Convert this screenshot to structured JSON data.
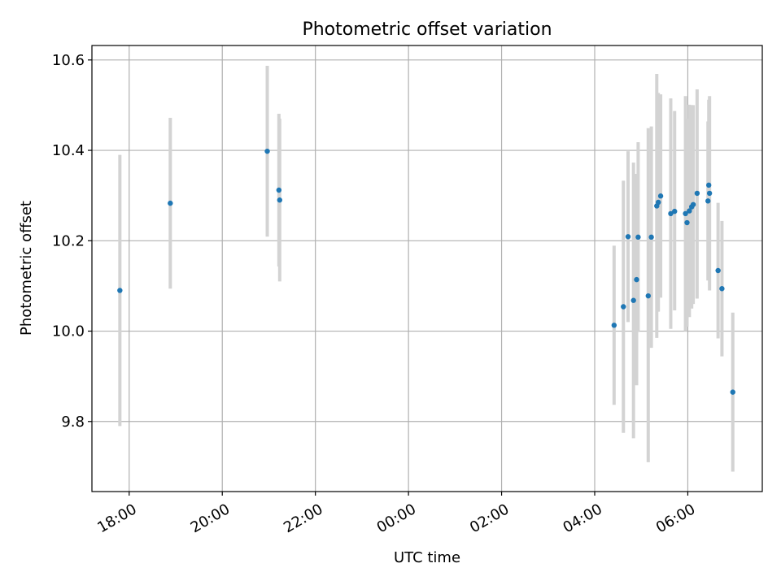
{
  "chart_data": {
    "type": "scatter",
    "title": "Photometric offset variation",
    "xlabel": "UTC time",
    "ylabel": "Photometric offset",
    "x_axis_kind": "time",
    "xlim": [
      "17:12",
      "07:36"
    ],
    "ylim": [
      9.645,
      10.632
    ],
    "xticks": [
      {
        "time": "18:00",
        "label": "18:00"
      },
      {
        "time": "20:00",
        "label": "20:00"
      },
      {
        "time": "22:00",
        "label": "22:00"
      },
      {
        "time": "00:00",
        "label": "00:00"
      },
      {
        "time": "02:00",
        "label": "02:00"
      },
      {
        "time": "04:00",
        "label": "04:00"
      },
      {
        "time": "06:00",
        "label": "06:00"
      }
    ],
    "yticks": [
      {
        "value": 9.8,
        "label": "9.8"
      },
      {
        "value": 10.0,
        "label": "10.0"
      },
      {
        "value": 10.2,
        "label": "10.2"
      },
      {
        "value": 10.4,
        "label": "10.4"
      },
      {
        "value": 10.6,
        "label": "10.6"
      }
    ],
    "grid": true,
    "colors": {
      "point": "#1f77b4",
      "errorbar": "#d3d3d3",
      "grid": "#b0b0b0"
    },
    "points": [
      {
        "time": "17:48",
        "y": 10.09,
        "ylo": 9.79,
        "yhi": 10.39
      },
      {
        "time": "18:53",
        "y": 10.283,
        "ylo": 10.094,
        "yhi": 10.472
      },
      {
        "time": "20:58",
        "y": 10.398,
        "ylo": 10.209,
        "yhi": 10.587
      },
      {
        "time": "21:13",
        "y": 10.312,
        "ylo": 10.143,
        "yhi": 10.481
      },
      {
        "time": "21:14",
        "y": 10.29,
        "ylo": 10.11,
        "yhi": 10.47
      },
      {
        "time": "04:25",
        "y": 10.013,
        "ylo": 9.837,
        "yhi": 10.189
      },
      {
        "time": "04:37",
        "y": 10.054,
        "ylo": 9.775,
        "yhi": 10.333
      },
      {
        "time": "04:43",
        "y": 10.209,
        "ylo": 10.02,
        "yhi": 10.398
      },
      {
        "time": "04:50",
        "y": 10.068,
        "ylo": 9.763,
        "yhi": 10.373
      },
      {
        "time": "04:54",
        "y": 10.114,
        "ylo": 9.88,
        "yhi": 10.348
      },
      {
        "time": "04:56",
        "y": 10.208,
        "ylo": 9.998,
        "yhi": 10.418
      },
      {
        "time": "05:09",
        "y": 10.078,
        "ylo": 9.71,
        "yhi": 10.449
      },
      {
        "time": "05:13",
        "y": 10.208,
        "ylo": 9.963,
        "yhi": 10.453
      },
      {
        "time": "05:20",
        "y": 10.277,
        "ylo": 9.985,
        "yhi": 10.569
      },
      {
        "time": "05:22",
        "y": 10.285,
        "ylo": 10.043,
        "yhi": 10.527
      },
      {
        "time": "05:25",
        "y": 10.299,
        "ylo": 10.074,
        "yhi": 10.524
      },
      {
        "time": "05:38",
        "y": 10.26,
        "ylo": 10.005,
        "yhi": 10.515
      },
      {
        "time": "05:43",
        "y": 10.265,
        "ylo": 10.046,
        "yhi": 10.487
      },
      {
        "time": "05:57",
        "y": 10.26,
        "ylo": 10.0,
        "yhi": 10.52
      },
      {
        "time": "05:59",
        "y": 10.24,
        "ylo": 10.01,
        "yhi": 10.47
      },
      {
        "time": "06:02",
        "y": 10.266,
        "ylo": 10.031,
        "yhi": 10.501
      },
      {
        "time": "06:05",
        "y": 10.275,
        "ylo": 10.05,
        "yhi": 10.5
      },
      {
        "time": "06:07",
        "y": 10.28,
        "ylo": 10.06,
        "yhi": 10.5
      },
      {
        "time": "06:12",
        "y": 10.305,
        "ylo": 10.072,
        "yhi": 10.535
      },
      {
        "time": "06:26",
        "y": 10.288,
        "ylo": 10.112,
        "yhi": 10.464
      },
      {
        "time": "06:27",
        "y": 10.323,
        "ylo": 10.134,
        "yhi": 10.512
      },
      {
        "time": "06:28",
        "y": 10.305,
        "ylo": 10.09,
        "yhi": 10.52
      },
      {
        "time": "06:39",
        "y": 10.134,
        "ylo": 9.984,
        "yhi": 10.284
      },
      {
        "time": "06:44",
        "y": 10.094,
        "ylo": 9.944,
        "yhi": 10.244
      },
      {
        "time": "06:58",
        "y": 9.865,
        "ylo": 9.689,
        "yhi": 10.041
      }
    ]
  }
}
